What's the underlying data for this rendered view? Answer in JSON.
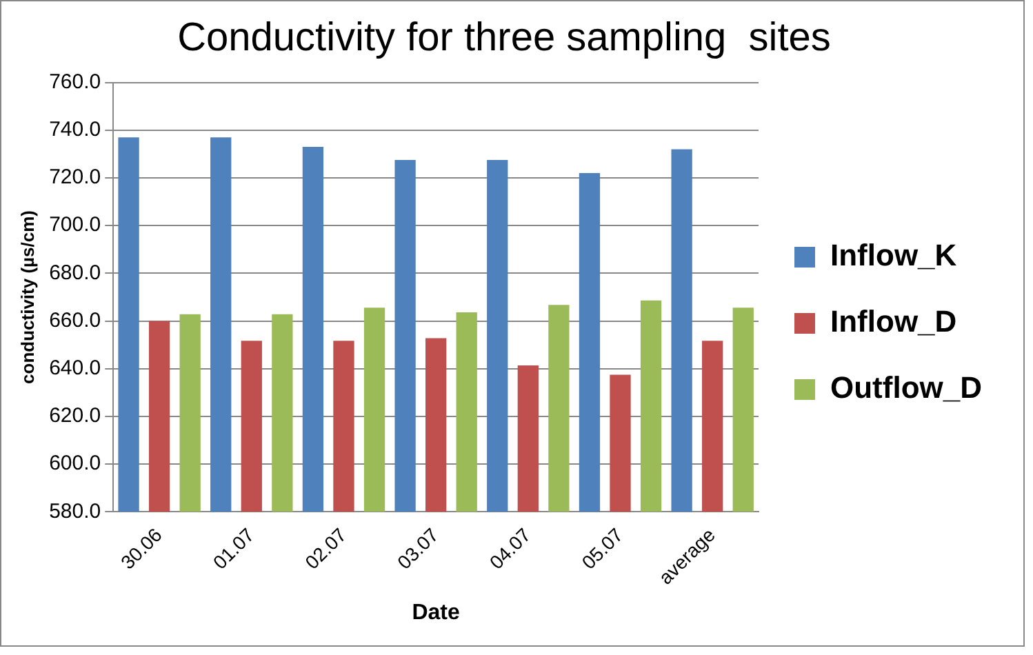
{
  "chart_data": {
    "type": "bar",
    "title": "Conductivity for three sampling  sites",
    "xlabel": "Date",
    "ylabel": "conductivity (µs/cm)",
    "categories": [
      "30.06",
      "01.07",
      "02.07",
      "03.07",
      "04.07",
      "05.07",
      "average"
    ],
    "series": [
      {
        "name": "Inflow_K",
        "color": "#4f81bd",
        "values": [
          737,
          737,
          733,
          727.5,
          727.5,
          722,
          732
        ]
      },
      {
        "name": "Inflow_D",
        "color": "#c0504d",
        "values": [
          660,
          651.7,
          651.7,
          652.8,
          641.4,
          637.5,
          651.7
        ]
      },
      {
        "name": "Outflow_D",
        "color": "#9bbb59",
        "values": [
          662.8,
          662.8,
          665.6,
          663.6,
          666.7,
          668.6,
          665.6
        ]
      }
    ],
    "ylim": [
      580,
      760
    ],
    "yticks": [
      {
        "value": 580,
        "label": "580.0"
      },
      {
        "value": 600,
        "label": "600.0"
      },
      {
        "value": 620,
        "label": "620.0"
      },
      {
        "value": 640,
        "label": "640.0"
      },
      {
        "value": 660,
        "label": "660.0"
      },
      {
        "value": 680,
        "label": "680.0"
      },
      {
        "value": 700,
        "label": "700.0"
      },
      {
        "value": 720,
        "label": "720.0"
      },
      {
        "value": 740,
        "label": "740.0"
      },
      {
        "value": 760,
        "label": "760.0"
      }
    ],
    "grid": "y",
    "legend": "right"
  }
}
